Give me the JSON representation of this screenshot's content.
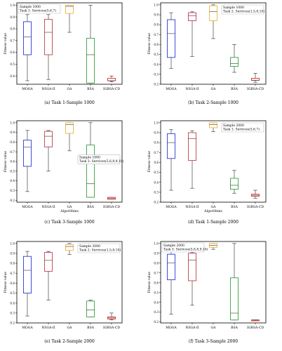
{
  "figure": {
    "ylabel": "Fitness value",
    "colors": {
      "MOGA": "#2b3bd6",
      "NSGA-II": "#c0404a",
      "GA": "#f0b440",
      "BSA": "#3aa043",
      "IGBSA-CD": "#e02a2a",
      "median": "#333333",
      "whisker": "#444444"
    }
  },
  "chart_data": [
    {
      "type": "boxplot",
      "caption": "(a) Task 1-Sample 1000",
      "legend": [
        "Sample 1000",
        "Task 1: Services(5,6,7)"
      ],
      "legend_position": "top-left",
      "categories": [
        "MOGA",
        "NSGA-II",
        "GA",
        "BSA",
        "IGBSA-CD"
      ],
      "xlabel": "",
      "yticks": [
        "0.4",
        "0.5",
        "0.6",
        "0.7",
        "0.8",
        "0.9",
        "1.0"
      ],
      "ylim": [
        0.33,
        1.02
      ],
      "boxes": [
        {
          "min": 0.36,
          "q1": 0.58,
          "median": 0.73,
          "q3": 0.86,
          "max": 0.92
        },
        {
          "min": 0.37,
          "q1": 0.58,
          "median": 0.77,
          "q3": 0.88,
          "max": 0.92
        },
        {
          "min": 0.77,
          "q1": 0.93,
          "median": 0.99,
          "q3": 1.0,
          "max": 1.0
        },
        {
          "min": 0.34,
          "q1": 0.34,
          "median": 0.58,
          "q3": 0.72,
          "max": 1.0
        },
        {
          "min": 0.35,
          "q1": 0.36,
          "median": 0.36,
          "q3": 0.38,
          "max": 0.4
        }
      ]
    },
    {
      "type": "boxplot",
      "caption": "(b) Task 2-Sample 1000",
      "legend": [
        "Sample 1000",
        "Task 2: Services(1,5,8,10)"
      ],
      "legend_position": "top-right",
      "categories": [
        "MOGA",
        "NSGA-II",
        "GA",
        "BSA",
        "IGBSA-CD"
      ],
      "xlabel": "",
      "yticks": [
        "0.2",
        "0.3",
        "0.4",
        "0.5",
        "0.6",
        "0.7",
        "0.8",
        "0.9",
        "1.0"
      ],
      "ylim": [
        0.2,
        1.02
      ],
      "boxes": [
        {
          "min": 0.36,
          "q1": 0.47,
          "median": 0.71,
          "q3": 0.85,
          "max": 0.92
        },
        {
          "min": 0.48,
          "q1": 0.84,
          "median": 0.89,
          "q3": 0.92,
          "max": 0.93
        },
        {
          "min": 0.66,
          "q1": 0.84,
          "median": 0.93,
          "q3": 0.99,
          "max": 1.0
        },
        {
          "min": 0.32,
          "q1": 0.38,
          "median": 0.41,
          "q3": 0.47,
          "max": 0.6
        },
        {
          "min": 0.22,
          "q1": 0.24,
          "median": 0.24,
          "q3": 0.26,
          "max": 0.31
        }
      ]
    },
    {
      "type": "boxplot",
      "caption": "(c) Task 3-Sample 1000",
      "legend": [
        "Sample 1000",
        "Task 3: Services(5,6,8,9,10)"
      ],
      "legend_position": "center-right",
      "categories": [
        "MOGA",
        "NSGA-II",
        "GA",
        "BSA",
        "IGBSA-CD"
      ],
      "xlabel": "Algorithms",
      "yticks": [
        "0.2",
        "0.3",
        "0.4",
        "0.5",
        "0.6",
        "0.7",
        "0.8",
        "0.9",
        "1.0"
      ],
      "ylim": [
        0.18,
        1.02
      ],
      "boxes": [
        {
          "min": 0.29,
          "q1": 0.55,
          "median": 0.75,
          "q3": 0.82,
          "max": 0.92
        },
        {
          "min": 0.5,
          "q1": 0.75,
          "median": 0.86,
          "q3": 0.91,
          "max": 0.92
        },
        {
          "min": 0.71,
          "q1": 0.89,
          "median": 0.98,
          "q3": 1.0,
          "max": 1.0
        },
        {
          "min": 0.23,
          "q1": 0.23,
          "median": 0.37,
          "q3": 0.77,
          "max": 1.0
        },
        {
          "min": 0.21,
          "q1": 0.21,
          "median": 0.22,
          "q3": 0.23,
          "max": 0.23
        }
      ]
    },
    {
      "type": "boxplot",
      "caption": "(d) Task 1-Sample 2000",
      "legend": [
        "Sample 2000",
        "Task 1: Services(5,6,7)"
      ],
      "legend_position": "top-right",
      "categories": [
        "MOGA",
        "NSGA-II",
        "GA",
        "BSA",
        "IGBSA-CD"
      ],
      "xlabel": "Algorithms",
      "yticks": [
        "0.2",
        "0.3",
        "0.4",
        "0.5",
        "0.6",
        "0.7",
        "0.8",
        "0.9",
        "1.0"
      ],
      "ylim": [
        0.2,
        1.02
      ],
      "boxes": [
        {
          "min": 0.32,
          "q1": 0.64,
          "median": 0.8,
          "q3": 0.89,
          "max": 0.93
        },
        {
          "min": 0.34,
          "q1": 0.62,
          "median": 0.84,
          "q3": 0.9,
          "max": 0.92
        },
        {
          "min": 0.91,
          "q1": 0.95,
          "median": 0.98,
          "q3": 1.0,
          "max": 1.0
        },
        {
          "min": 0.29,
          "q1": 0.33,
          "median": 0.37,
          "q3": 0.44,
          "max": 0.52
        },
        {
          "min": 0.24,
          "q1": 0.26,
          "median": 0.27,
          "q3": 0.28,
          "max": 0.32
        }
      ]
    },
    {
      "type": "boxplot",
      "caption": "(e) Task 2-Sample 2000",
      "legend": [
        "Sample 2000",
        "Task 2: Services(1,5,8,10)"
      ],
      "legend_position": "top-right",
      "categories": [
        "MOGA",
        "NSGA-II",
        "GA",
        "BSA",
        "IGBSA-CD"
      ],
      "xlabel": "",
      "yticks": [
        "0.2",
        "0.3",
        "0.4",
        "0.5",
        "0.6",
        "0.7",
        "0.8",
        "0.9",
        "1.0"
      ],
      "ylim": [
        0.2,
        1.02
      ],
      "boxes": [
        {
          "min": 0.27,
          "q1": 0.5,
          "median": 0.73,
          "q3": 0.87,
          "max": 0.92
        },
        {
          "min": 0.43,
          "q1": 0.72,
          "median": 0.83,
          "q3": 0.91,
          "max": 0.92
        },
        {
          "min": 0.89,
          "q1": 0.93,
          "median": 0.97,
          "q3": 0.99,
          "max": 1.0
        },
        {
          "min": 0.26,
          "q1": 0.26,
          "median": 0.33,
          "q3": 0.42,
          "max": 0.43
        },
        {
          "min": 0.23,
          "q1": 0.24,
          "median": 0.25,
          "q3": 0.26,
          "max": 0.3
        }
      ]
    },
    {
      "type": "boxplot",
      "caption": "(f) Task 3-Sample 2000",
      "legend": [
        "Sample 2000",
        "Task 3: Services(5,6,8,9,10)"
      ],
      "legend_position": "top-left",
      "categories": [
        "MOGA",
        "NSGA-II",
        "GA",
        "BSA",
        "IGBSA-CD"
      ],
      "xlabel": "",
      "yticks": [
        "0.2",
        "0.3",
        "0.4",
        "0.5",
        "0.6",
        "0.7",
        "0.8",
        "0.9",
        "1.0"
      ],
      "ylim": [
        0.19,
        1.02
      ],
      "boxes": [
        {
          "min": 0.28,
          "q1": 0.63,
          "median": 0.8,
          "q3": 0.89,
          "max": 0.93
        },
        {
          "min": 0.37,
          "q1": 0.62,
          "median": 0.83,
          "q3": 0.9,
          "max": 0.91
        },
        {
          "min": 0.94,
          "q1": 0.96,
          "median": 0.98,
          "q3": 1.0,
          "max": 1.0
        },
        {
          "min": 0.22,
          "q1": 0.22,
          "median": 0.29,
          "q3": 0.65,
          "max": 1.0
        },
        {
          "min": 0.22,
          "q1": 0.22,
          "median": 0.22,
          "q3": 0.22,
          "max": 0.22
        }
      ]
    }
  ]
}
